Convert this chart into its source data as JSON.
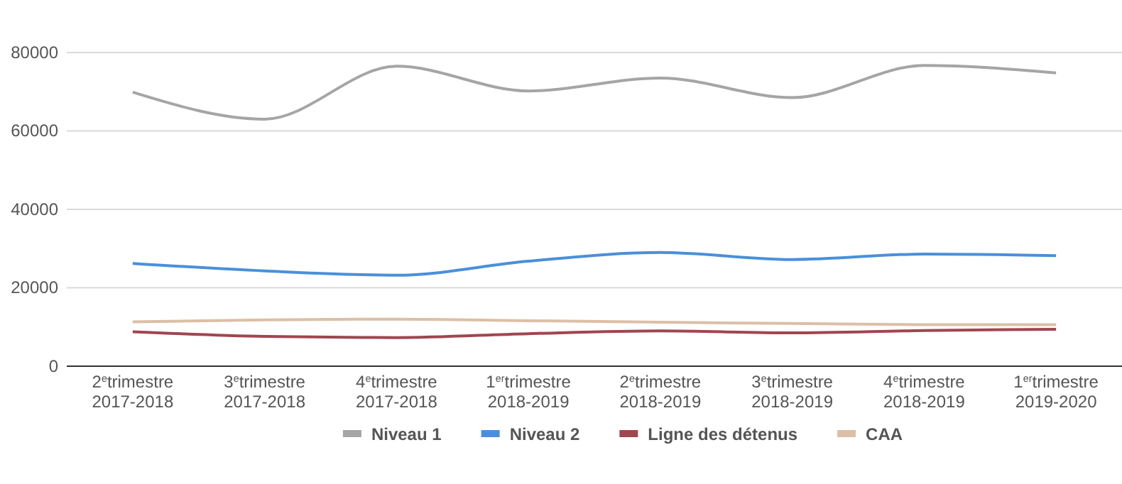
{
  "chart_data": {
    "type": "line",
    "categories": [
      "2$^{e}$trimestre\n2017-2018",
      "3$^{e}$trimestre\n2017-2018",
      "4$^{e}$trimestre\n2017-2018",
      "1$^{er}$trimestre\n2018-2019",
      "2$^{e}$trimestre\n2018-2019",
      "3$^{e}$trimestre\n2018-2019",
      "4$^{e}$trimestre\n2018-2019",
      "1$^{er}$trimestre\n2019-2020"
    ],
    "series": [
      {
        "name": "Niveau 1",
        "color": "#a5a5a5",
        "values": [
          69900,
          63000,
          76500,
          70200,
          73500,
          68500,
          76700,
          74800
        ]
      },
      {
        "name": "Niveau 2",
        "color": "#4a90d9",
        "values": [
          26200,
          24300,
          23200,
          26800,
          29000,
          27200,
          28600,
          28200
        ]
      },
      {
        "name": "Ligne des détenus",
        "color": "#a0464f",
        "values": [
          8800,
          7600,
          7300,
          8300,
          9000,
          8500,
          9100,
          9400
        ]
      },
      {
        "name": "CAA",
        "color": "#dcbfa6",
        "values": [
          11300,
          11800,
          12000,
          11600,
          11200,
          10900,
          10600,
          10600
        ]
      }
    ],
    "ylim": [
      0,
      80000
    ],
    "yticks": [
      0,
      20000,
      40000,
      60000,
      80000
    ],
    "grid": "y",
    "legend": "bottom",
    "marker": "none",
    "line_style": "solid"
  }
}
